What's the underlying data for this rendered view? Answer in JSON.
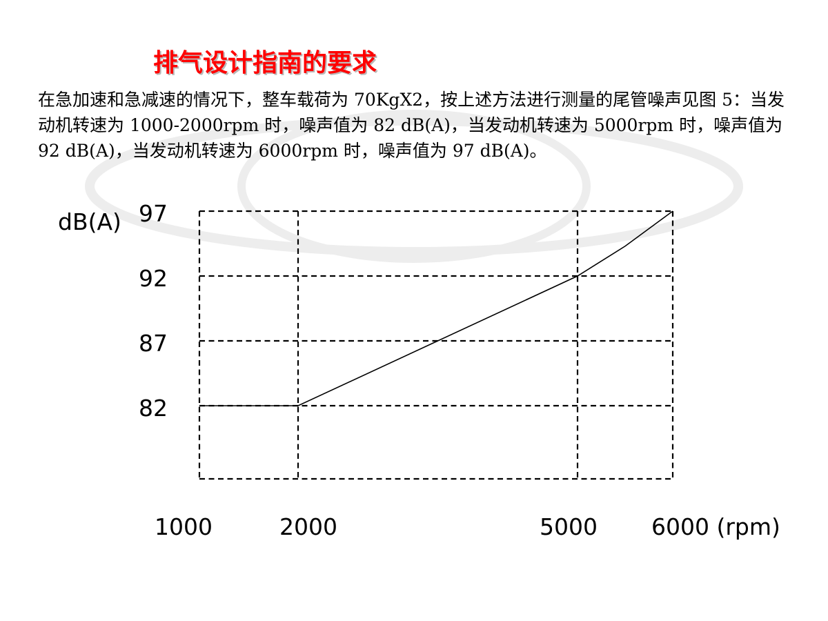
{
  "title": "排气设计指南的要求",
  "paragraph": "在急加速和急减速的情况下，整车载荷为 70KgX2，按上述方法进行测量的尾管噪声见图 5：当发动机转速为 1000-2000rpm 时，噪声值为 82 dB(A)，当发动机转速为 5000rpm 时，噪声值为 92 dB(A)，当发动机转速为 6000rpm 时，噪声值为 97 dB(A)。",
  "chart_data": {
    "type": "line",
    "title": "",
    "xlabel": "",
    "ylabel": "dB(A)",
    "x_unit_label": "(rpm)",
    "x_ticks": [
      1000,
      2000,
      5000,
      6000
    ],
    "y_ticks": [
      82,
      87,
      92,
      97
    ],
    "x_tick_labels": [
      "1000",
      "2000",
      "5000",
      "6000 (rpm)"
    ],
    "y_tick_labels": [
      "82",
      "87",
      "92",
      "97"
    ],
    "xlim": [
      1000,
      6000
    ],
    "ylim": [
      76.5,
      97
    ],
    "grid": "dashed",
    "series": [
      {
        "x": [
          1000,
          2000,
          3500,
          5000,
          5500,
          6000
        ],
        "y": [
          82,
          82,
          87,
          92,
          94.3,
          97
        ]
      }
    ]
  }
}
